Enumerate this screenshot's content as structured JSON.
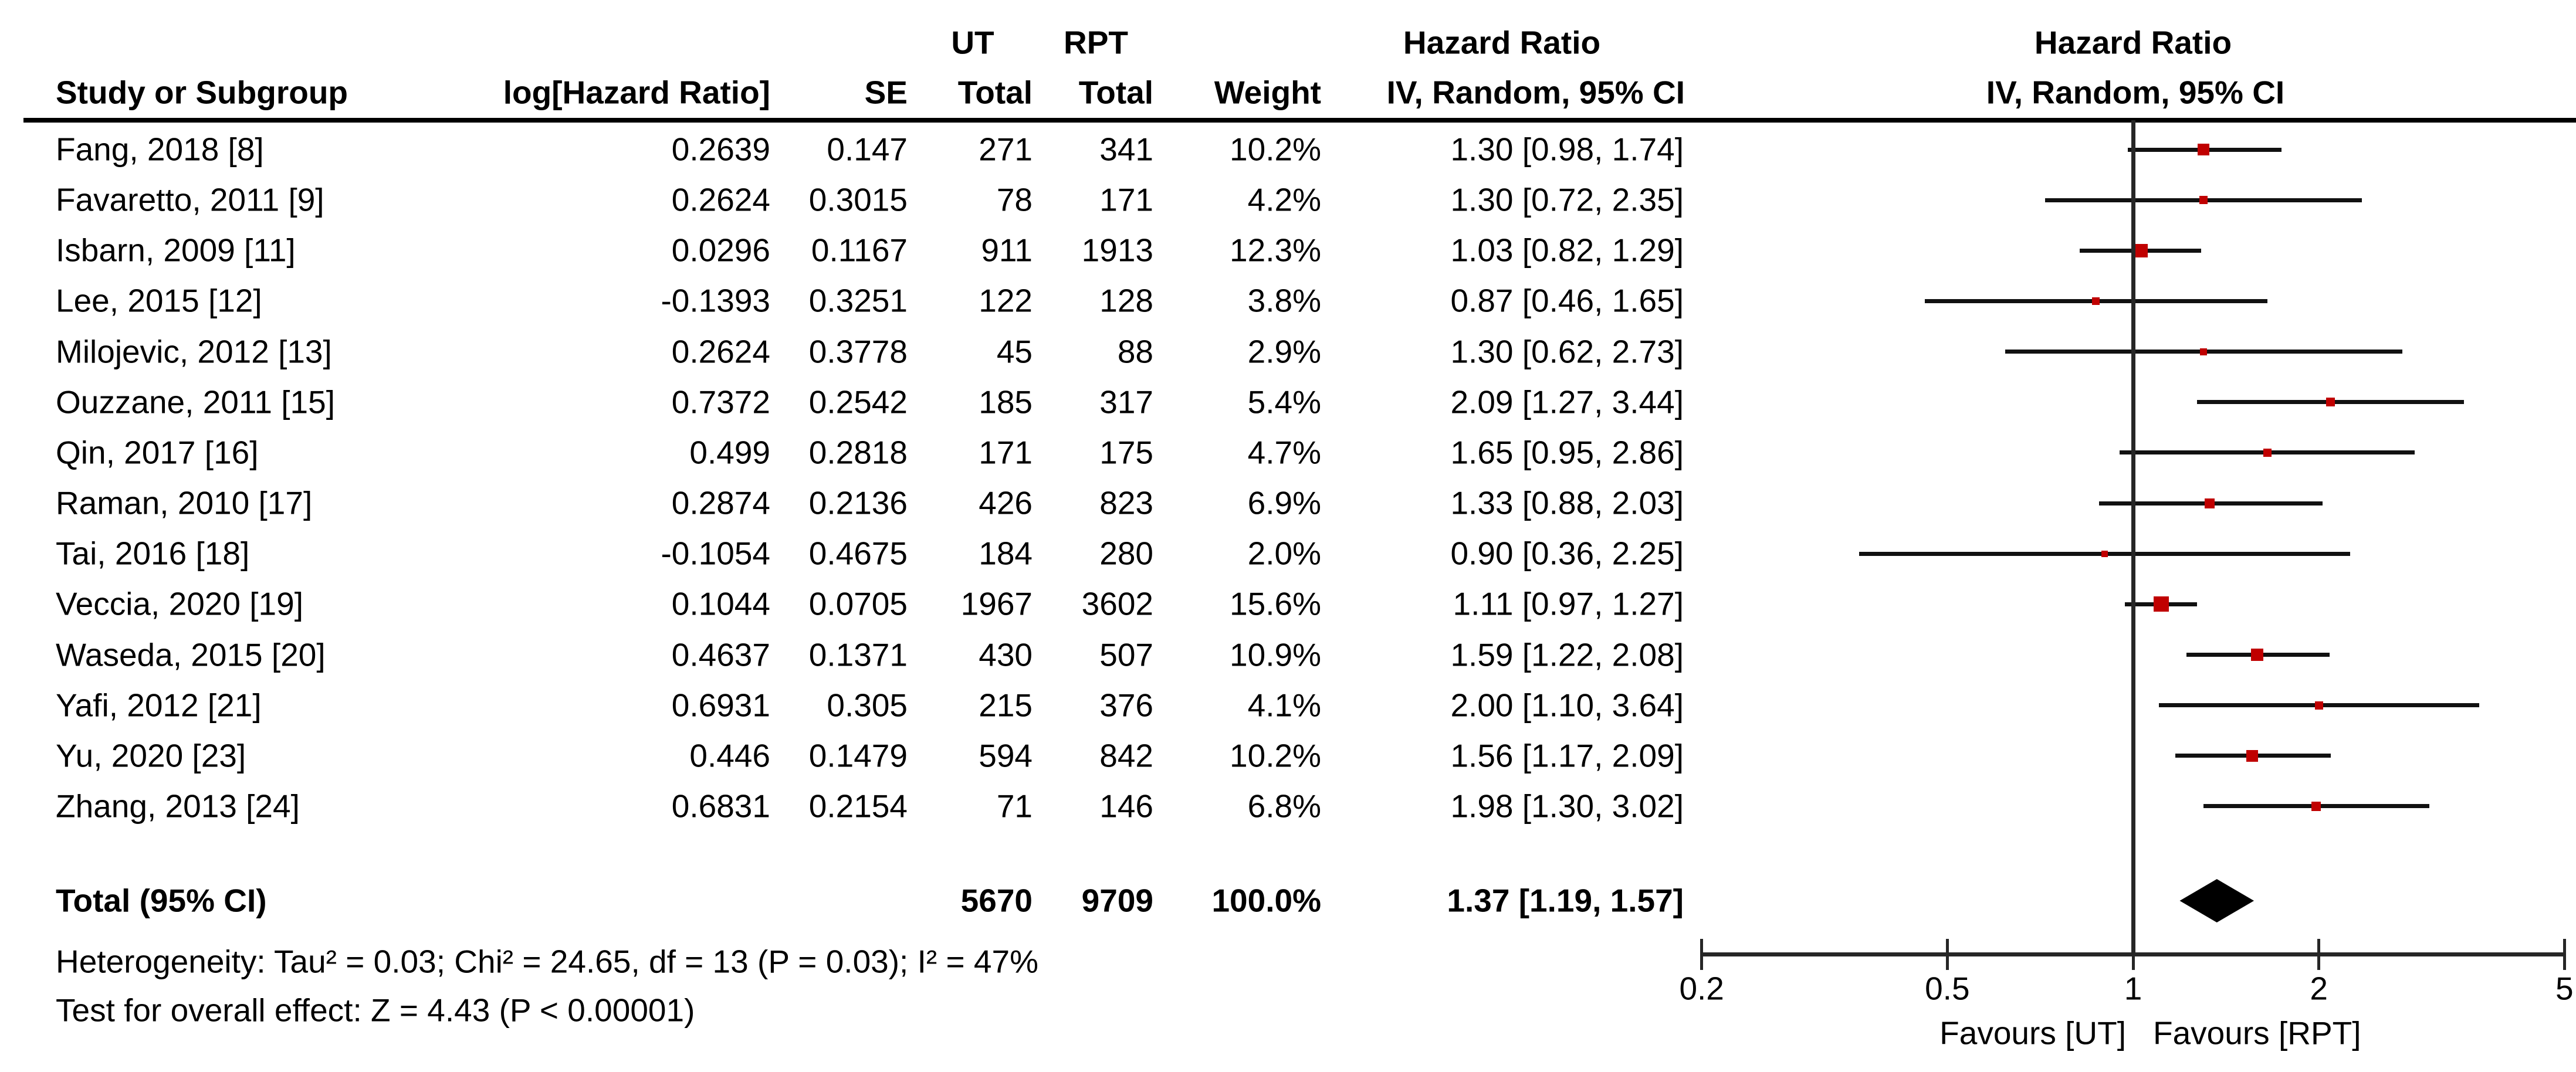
{
  "header": {
    "col_study": "Study or Subgroup",
    "col_loghr": "log[Hazard Ratio]",
    "col_se": "SE",
    "group_ut": "UT",
    "group_rpt": "RPT",
    "col_total_ut": "Total",
    "col_total_rpt": "Total",
    "col_weight": "Weight",
    "col_hr_line1": "Hazard Ratio",
    "col_hr_line2": "IV, Random, 95% CI",
    "plot_hr_line1": "Hazard Ratio",
    "plot_hr_line2": "IV, Random, 95% CI"
  },
  "chart_data": {
    "type": "forest",
    "effect_measure": "Hazard Ratio",
    "method": "IV, Random, 95% CI",
    "x_scale": "log",
    "axis": {
      "ticks": [
        0.2,
        0.5,
        1,
        2,
        5
      ],
      "min": 0.2,
      "max": 5,
      "favours_left": "Favours [UT]",
      "favours_right": "Favours [RPT]"
    },
    "colors": {
      "marker": "#c00000",
      "ci_line": "#111111",
      "axis_line": "#262626",
      "diamond": "#000000"
    },
    "studies": [
      {
        "name": "Fang, 2018 [8]",
        "log_hr": "0.2639",
        "se": "0.147",
        "ut": "271",
        "rpt": "341",
        "weight": "10.2%",
        "w": 10.2,
        "hr": 1.3,
        "lo": 0.98,
        "hi": 1.74,
        "ci_text": "1.30 [0.98, 1.74]"
      },
      {
        "name": "Favaretto, 2011 [9]",
        "log_hr": "0.2624",
        "se": "0.3015",
        "ut": "78",
        "rpt": "171",
        "weight": "4.2%",
        "w": 4.2,
        "hr": 1.3,
        "lo": 0.72,
        "hi": 2.35,
        "ci_text": "1.30 [0.72, 2.35]"
      },
      {
        "name": "Isbarn, 2009 [11]",
        "log_hr": "0.0296",
        "se": "0.1167",
        "ut": "911",
        "rpt": "1913",
        "weight": "12.3%",
        "w": 12.3,
        "hr": 1.03,
        "lo": 0.82,
        "hi": 1.29,
        "ci_text": "1.03 [0.82, 1.29]"
      },
      {
        "name": "Lee, 2015 [12]",
        "log_hr": "-0.1393",
        "se": "0.3251",
        "ut": "122",
        "rpt": "128",
        "weight": "3.8%",
        "w": 3.8,
        "hr": 0.87,
        "lo": 0.46,
        "hi": 1.65,
        "ci_text": "0.87 [0.46, 1.65]"
      },
      {
        "name": "Milojevic, 2012 [13]",
        "log_hr": "0.2624",
        "se": "0.3778",
        "ut": "45",
        "rpt": "88",
        "weight": "2.9%",
        "w": 2.9,
        "hr": 1.3,
        "lo": 0.62,
        "hi": 2.73,
        "ci_text": "1.30 [0.62, 2.73]"
      },
      {
        "name": "Ouzzane, 2011 [15]",
        "log_hr": "0.7372",
        "se": "0.2542",
        "ut": "185",
        "rpt": "317",
        "weight": "5.4%",
        "w": 5.4,
        "hr": 2.09,
        "lo": 1.27,
        "hi": 3.44,
        "ci_text": "2.09 [1.27, 3.44]"
      },
      {
        "name": "Qin, 2017 [16]",
        "log_hr": "0.499",
        "se": "0.2818",
        "ut": "171",
        "rpt": "175",
        "weight": "4.7%",
        "w": 4.7,
        "hr": 1.65,
        "lo": 0.95,
        "hi": 2.86,
        "ci_text": "1.65 [0.95, 2.86]"
      },
      {
        "name": "Raman, 2010 [17]",
        "log_hr": "0.2874",
        "se": "0.2136",
        "ut": "426",
        "rpt": "823",
        "weight": "6.9%",
        "w": 6.9,
        "hr": 1.33,
        "lo": 0.88,
        "hi": 2.03,
        "ci_text": "1.33 [0.88, 2.03]"
      },
      {
        "name": "Tai, 2016 [18]",
        "log_hr": "-0.1054",
        "se": "0.4675",
        "ut": "184",
        "rpt": "280",
        "weight": "2.0%",
        "w": 2.0,
        "hr": 0.9,
        "lo": 0.36,
        "hi": 2.25,
        "ci_text": "0.90 [0.36, 2.25]"
      },
      {
        "name": "Veccia, 2020 [19]",
        "log_hr": "0.1044",
        "se": "0.0705",
        "ut": "1967",
        "rpt": "3602",
        "weight": "15.6%",
        "w": 15.6,
        "hr": 1.11,
        "lo": 0.97,
        "hi": 1.27,
        "ci_text": "1.11 [0.97, 1.27]"
      },
      {
        "name": "Waseda, 2015 [20]",
        "log_hr": "0.4637",
        "se": "0.1371",
        "ut": "430",
        "rpt": "507",
        "weight": "10.9%",
        "w": 10.9,
        "hr": 1.59,
        "lo": 1.22,
        "hi": 2.08,
        "ci_text": "1.59 [1.22, 2.08]"
      },
      {
        "name": "Yafi, 2012 [21]",
        "log_hr": "0.6931",
        "se": "0.305",
        "ut": "215",
        "rpt": "376",
        "weight": "4.1%",
        "w": 4.1,
        "hr": 2.0,
        "lo": 1.1,
        "hi": 3.64,
        "ci_text": "2.00 [1.10, 3.64]"
      },
      {
        "name": "Yu, 2020 [23]",
        "log_hr": "0.446",
        "se": "0.1479",
        "ut": "594",
        "rpt": "842",
        "weight": "10.2%",
        "w": 10.2,
        "hr": 1.56,
        "lo": 1.17,
        "hi": 2.09,
        "ci_text": "1.56 [1.17, 2.09]"
      },
      {
        "name": "Zhang, 2013 [24]",
        "log_hr": "0.6831",
        "se": "0.2154",
        "ut": "71",
        "rpt": "146",
        "weight": "6.8%",
        "w": 6.8,
        "hr": 1.98,
        "lo": 1.3,
        "hi": 3.02,
        "ci_text": "1.98 [1.30, 3.02]"
      }
    ],
    "total": {
      "label": "Total (95% CI)",
      "ut": "5670",
      "rpt": "9709",
      "weight": "100.0%",
      "hr": 1.37,
      "lo": 1.19,
      "hi": 1.57,
      "ci_text": "1.37 [1.19, 1.57]"
    },
    "footnotes": {
      "heterogeneity": "Heterogeneity: Tau² = 0.03; Chi² = 24.65, df = 13 (P = 0.03); I² = 47%",
      "overall_effect": "Test for overall effect: Z = 4.43 (P < 0.00001)"
    }
  }
}
